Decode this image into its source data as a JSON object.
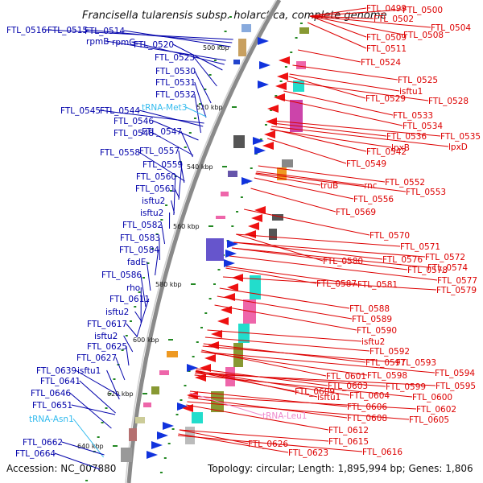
{
  "title": "Francisella tularensis subsp. holarctica, complete genome",
  "accession": "Accession: NC_007880",
  "topology": "Topology: circular; Length: 1,895,994 bp; Genes: 1,806",
  "colors": {
    "left_label": "#0000aa",
    "right_label": "#dd0000",
    "trna_label": "#33bbee",
    "rrna_label": "#ee88cc",
    "backbone": "#8a8a8a",
    "tick": "#228822"
  },
  "kbp_marks": [
    "500 kbp",
    "520 kbp",
    "540 kbp",
    "560 kbp",
    "580 kbp",
    "600 kbp",
    "620 kbp",
    "640 kbp"
  ],
  "left_labels": [
    "FTL_0516",
    "FTL_0515",
    "FTL_0514",
    "rpmB",
    "rpmG",
    "FTL_0520",
    "FTL_0523",
    "FTL_0530",
    "FTL_0531",
    "FTL_0532",
    "tRNA-Met3",
    "FTL_0545",
    "FTL_0544",
    "FTL_0546",
    "FTL_0548",
    "FTL_0547",
    "FTL_0558",
    "FTL_0557",
    "FTL_0559",
    "FTL_0560",
    "FTL_0561",
    "isftu2",
    "isftu2",
    "FTL_0582",
    "FTL_0583",
    "FTL_0584",
    "fadE",
    "FTL_0586",
    "rho",
    "FTL_0611",
    "isftu2",
    "FTL_0617",
    "isftu2",
    "FTL_0625",
    "FTL_0627",
    "FTL_0639",
    "isftu1",
    "FTL_0641",
    "FTL_0646",
    "tRNA-Asn1",
    "FTL_0651",
    "FTL_0662",
    "FTL_0664"
  ],
  "right_labels": [
    "FTL_0499",
    "FTL_0500",
    "FTL_0502",
    "FTL_0504",
    "FTL_0508",
    "FTL_0509",
    "FTL_0511",
    "FTL_0524",
    "FTL_0525",
    "isftu1",
    "FTL_0528",
    "FTL_0529",
    "FTL_0533",
    "FTL_0534",
    "FTL_0536",
    "FTL_0535",
    "lpxB",
    "lpxD",
    "FTL_0542",
    "FTL_0549",
    "truB",
    "rnc",
    "FTL_0552",
    "FTL_0553",
    "FTL_0556",
    "FTL_0569",
    "FTL_0570",
    "FTL_0571",
    "FTL_0572",
    "FTL_0576",
    "FTL_0574",
    "FTL_0578",
    "FTL_0577",
    "FTL_0580",
    "FTL_0579",
    "FTL_0587",
    "FTL_0581",
    "FTL_0588",
    "FTL_0589",
    "FTL_0590",
    "isftu2",
    "FTL_0592",
    "FTL_0593",
    "FTL_0597",
    "FTL_0594",
    "FTL_0598",
    "FTL_0601",
    "FTL_0595",
    "FTL_0599",
    "FTL_0603",
    "FTL_0609",
    "FTL_0600",
    "FTL_0604",
    "isftu1",
    "FTL_0602",
    "FTL_0606",
    "FTL_0605",
    "FTL_0608",
    "tRNA-Leu1",
    "FTL_0612",
    "FTL_0615",
    "FTL_0626",
    "FTL_0616",
    "FTL_0623"
  ]
}
